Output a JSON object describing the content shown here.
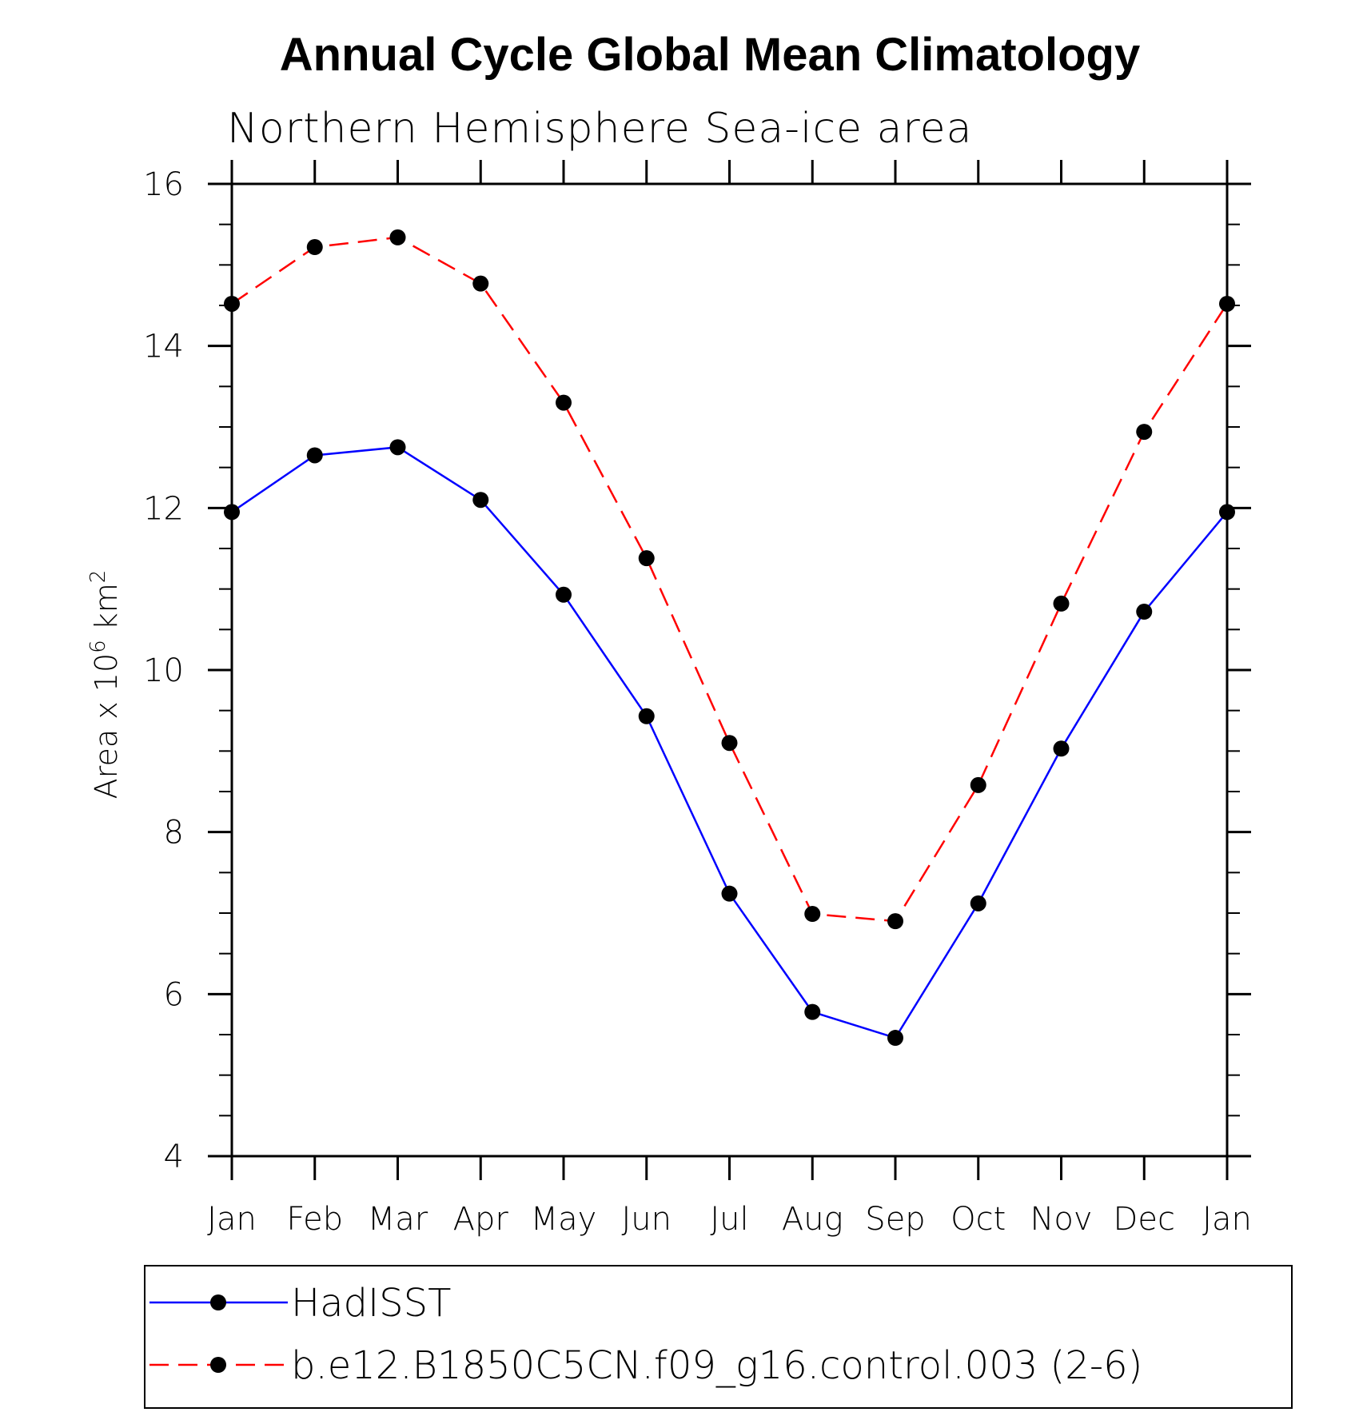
{
  "chart_data": {
    "type": "line",
    "title": "Annual Cycle Global Mean Climatology",
    "subtitle": "Northern Hemisphere Sea-ice area",
    "xlabel": "",
    "ylabel": "Area x 10^6 km^2",
    "ylabel_parts": {
      "base": "Area x 10",
      "exp1": "6",
      "unit": " km",
      "exp2": "2"
    },
    "categories": [
      "Jan",
      "Feb",
      "Mar",
      "Apr",
      "May",
      "Jun",
      "Jul",
      "Aug",
      "Sep",
      "Oct",
      "Nov",
      "Dec",
      "Jan"
    ],
    "ylim": [
      4,
      16
    ],
    "yticks": [
      4,
      6,
      8,
      10,
      12,
      14,
      16
    ],
    "series": [
      {
        "name": "HadISST",
        "color": "#0000ff",
        "style": "solid",
        "marker": "filled-circle",
        "values": [
          11.95,
          12.65,
          12.75,
          12.1,
          10.93,
          9.43,
          7.24,
          5.78,
          5.46,
          7.12,
          9.03,
          10.72,
          11.95
        ]
      },
      {
        "name": "b.e12.B1850C5CN.f09_g16.control.003 (2-6)",
        "color": "#ff0000",
        "style": "dashed",
        "marker": "filled-circle",
        "values": [
          14.52,
          15.22,
          15.34,
          14.77,
          13.3,
          11.38,
          9.1,
          6.99,
          6.9,
          8.58,
          10.82,
          12.94,
          14.52
        ]
      }
    ],
    "grid": false,
    "legend_position": "bottom"
  }
}
